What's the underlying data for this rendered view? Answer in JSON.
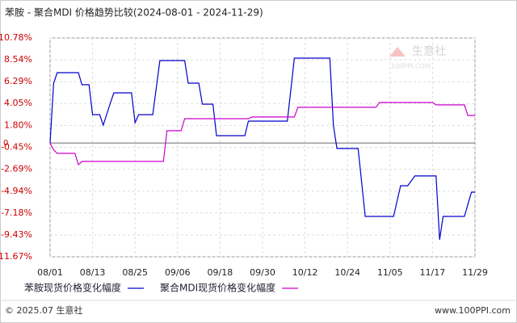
{
  "chart_data": {
    "type": "line",
    "title": "苯胺 - 聚合MDI 价格趋势比较(2024-08-01 - 2024-11-29)",
    "xlim": [
      "08/01",
      "11/29"
    ],
    "xticks": [
      "08/01",
      "08/13",
      "08/25",
      "09/06",
      "09/18",
      "09/30",
      "10/12",
      "10/24",
      "11/05",
      "11/17",
      "11/29"
    ],
    "ylim": [
      -11.67,
      10.78
    ],
    "yticks": [
      {
        "value": 10.78,
        "label": "10.78%"
      },
      {
        "value": 8.54,
        "label": "8.54%"
      },
      {
        "value": 6.29,
        "label": "6.29%"
      },
      {
        "value": 4.05,
        "label": "4.05%"
      },
      {
        "value": 1.8,
        "label": "1.80%"
      },
      {
        "value": -0.45,
        "label": "-0.45%"
      },
      {
        "value": -2.69,
        "label": "-2.69%"
      },
      {
        "value": -4.94,
        "label": "-4.94%"
      },
      {
        "value": -7.18,
        "label": "-7.18%"
      },
      {
        "value": -9.43,
        "label": "-9.43%"
      },
      {
        "value": -11.67,
        "label": "-11.67%"
      }
    ],
    "reference_line": 0,
    "grid": true,
    "legend": "bottom",
    "series": [
      {
        "name": "苯胺现货价格变化幅度",
        "color": "#0000cc",
        "x": [
          "08/01",
          "08/02",
          "08/03",
          "08/09",
          "08/10",
          "08/12",
          "08/13",
          "08/15",
          "08/16",
          "08/18",
          "08/19",
          "08/24",
          "08/25",
          "08/26",
          "08/30",
          "09/01",
          "09/08",
          "09/09",
          "09/12",
          "09/13",
          "09/16",
          "09/17",
          "09/25",
          "09/26",
          "10/07",
          "10/09",
          "10/19",
          "10/20",
          "10/21",
          "10/27",
          "10/29",
          "11/06",
          "11/08",
          "11/10",
          "11/12",
          "11/18",
          "11/19",
          "11/20",
          "11/26",
          "11/28",
          "11/29"
        ],
        "values": [
          0,
          6.14,
          7.22,
          7.22,
          5.98,
          5.98,
          2.91,
          2.91,
          1.83,
          4.07,
          5.15,
          5.15,
          2.08,
          2.91,
          2.91,
          8.46,
          8.46,
          6.14,
          6.14,
          3.99,
          3.99,
          0.76,
          0.76,
          2.25,
          2.25,
          8.71,
          8.71,
          1.83,
          -0.56,
          -0.56,
          -7.53,
          -7.53,
          -4.38,
          -4.38,
          -3.38,
          -3.38,
          -9.92,
          -7.53,
          -7.53,
          -5.04,
          -5.04
        ]
      },
      {
        "name": "聚合MDI现货价格变化幅度",
        "color": "#cc00cc",
        "x": [
          "08/01",
          "08/02",
          "08/03",
          "08/08",
          "08/09",
          "08/10",
          "09/02",
          "09/03",
          "09/07",
          "09/08",
          "09/26",
          "09/27",
          "10/09",
          "10/10",
          "11/01",
          "11/02",
          "11/17",
          "11/18",
          "11/26",
          "11/27",
          "11/29"
        ],
        "values": [
          0,
          -0.7,
          -1.06,
          -1.06,
          -2.22,
          -1.89,
          -1.89,
          1.26,
          1.26,
          2.5,
          2.5,
          2.67,
          2.67,
          3.66,
          3.66,
          4.16,
          4.16,
          3.91,
          3.91,
          2.83,
          2.83
        ]
      }
    ]
  },
  "watermark": {
    "brand": "生意社",
    "site": "100PPI.COM"
  },
  "footer": {
    "copyright": "© 2025.07 生意社",
    "website": "www.100PPI.com"
  }
}
